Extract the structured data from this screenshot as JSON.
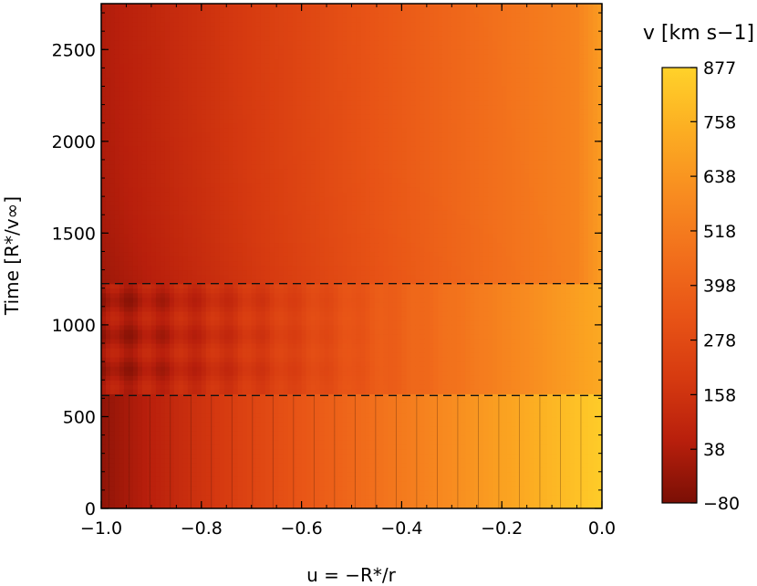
{
  "chart_data": {
    "type": "heatmap",
    "title": "",
    "xlabel": "u = −R*/r",
    "ylabel": "Time [R*/v∞]",
    "xlim": [
      -1.0,
      0.0
    ],
    "ylim": [
      0,
      2750
    ],
    "x_ticks": [
      -1.0,
      -0.8,
      -0.6,
      -0.4,
      -0.2,
      0.0
    ],
    "x_tick_labels": [
      "−1.0",
      "−0.8",
      "−0.6",
      "−0.4",
      "−0.2",
      "0.0"
    ],
    "y_ticks": [
      0,
      500,
      1000,
      1500,
      2000,
      2500
    ],
    "y_tick_labels": [
      "0",
      "500",
      "1000",
      "1500",
      "2000",
      "2500"
    ],
    "hlines": [
      615,
      1225
    ],
    "grid": false,
    "colorbar": {
      "label": "v [km s−1]",
      "min": -80,
      "max": 877,
      "tick_values": [
        -80,
        38,
        158,
        278,
        398,
        518,
        638,
        758,
        877
      ],
      "tick_labels": [
        "−80",
        "38",
        "158",
        "278",
        "398",
        "518",
        "638",
        "758",
        "877"
      ],
      "colormap": [
        "#7a0f05",
        "#b81f0c",
        "#d63a10",
        "#e85416",
        "#f2701c",
        "#f88d20",
        "#fcae22",
        "#ffd22a"
      ]
    }
  }
}
